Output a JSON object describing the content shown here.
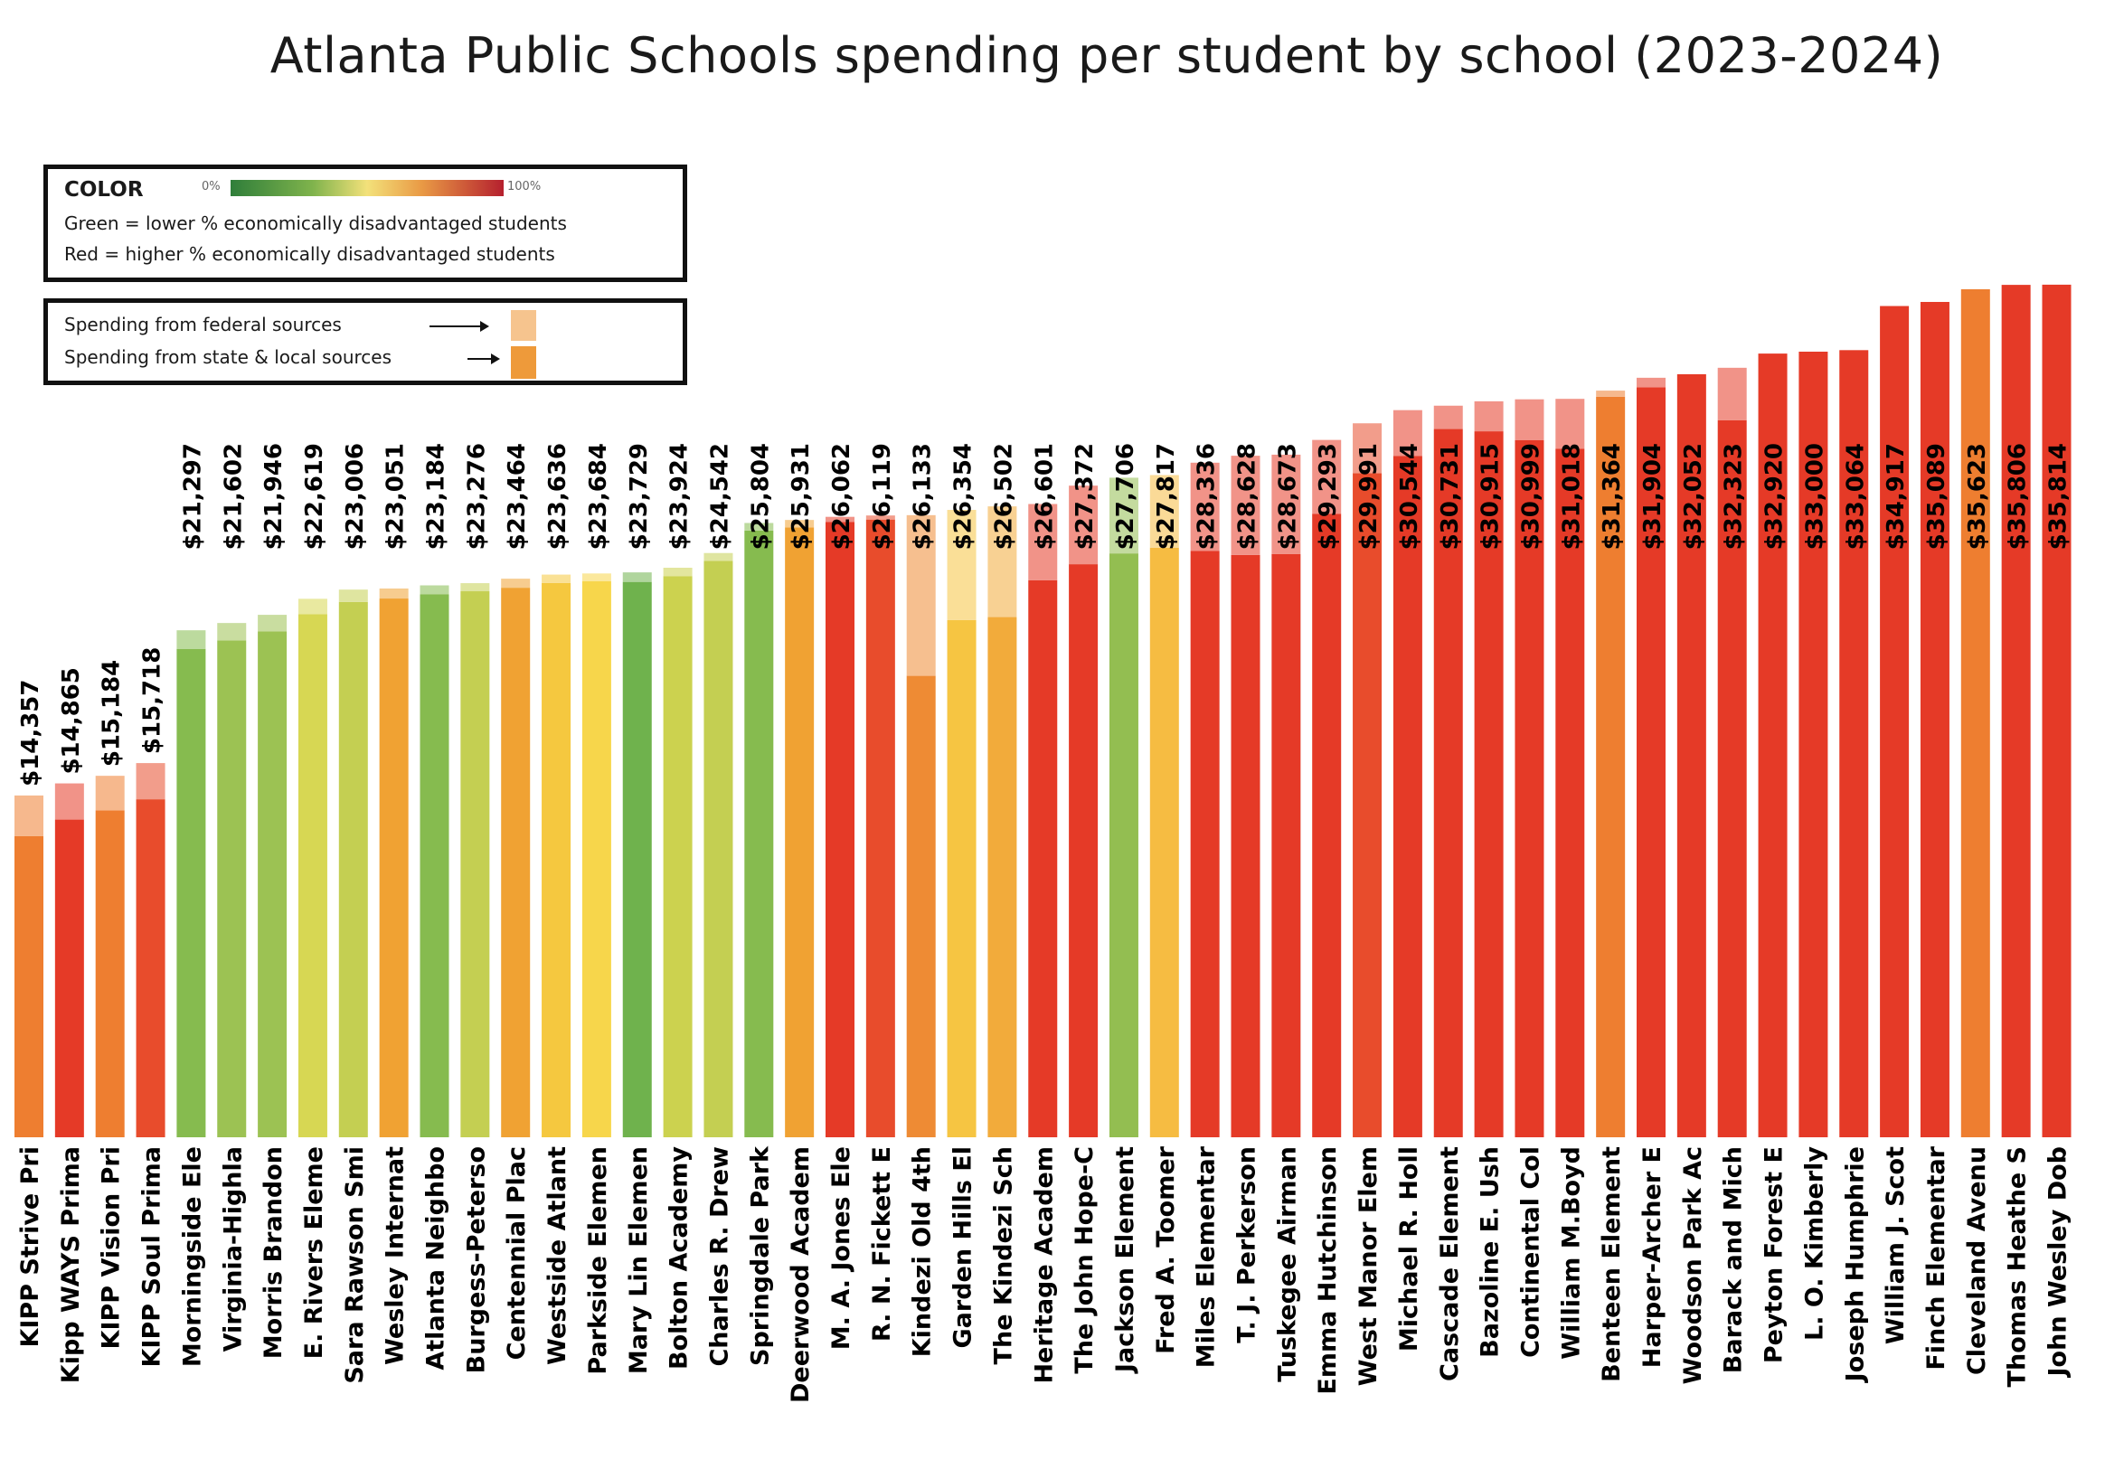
{
  "chart_data": {
    "type": "bar",
    "stacked": true,
    "title": "Atlanta Public Schools spending per student by school (2023-2024)",
    "legend": {
      "color_heading": "COLOR",
      "scale_min_label": "0%",
      "scale_max_label": "100%",
      "green_text": "Green = lower % economically disadvantaged students",
      "red_text": "Red = higher % economically disadvantaged students",
      "federal_text": "Spending from federal sources",
      "state_text": "Spending from state & local sources",
      "federal_color": "#f6c48e",
      "state_color": "#ee9a3a"
    },
    "series": [
      {
        "name": "Spending from state & local sources"
      },
      {
        "name": "Spending from federal sources"
      }
    ],
    "categories": [
      "KIPP Strive Pri",
      "Kipp WAYS Prima",
      "KIPP Vision Pri",
      "KIPP Soul Prima",
      "Morningside Ele",
      "Virginia-Highla",
      "Morris Brandon",
      "E. Rivers Eleme",
      "Sara Rawson Smi",
      "Wesley Internat",
      "Atlanta Neighbo",
      "Burgess-Peterso",
      "Centennial Plac",
      "Westside Atlant",
      "Parkside Elemen",
      "Mary Lin Elemen",
      "Bolton Academy",
      "Charles R. Drew",
      "Springdale Park",
      "Deerwood Academ",
      "M. A. Jones Ele",
      "R. N. Fickett E",
      "Kindezi Old 4th",
      "Garden Hills El",
      "The Kindezi Sch",
      "Heritage Academ",
      "The John Hope-C",
      "Jackson Element",
      "Fred A. Toomer",
      "Miles Elementar",
      "T. J. Perkerson",
      "Tuskegee Airman",
      "Emma Hutchinson",
      "West Manor Elem",
      "Michael R. Holl",
      "Cascade Element",
      "Bazoline E. Ush",
      "Continental Col",
      "William M.Boyd",
      "Benteen Element",
      "Harper-Archer E",
      "Woodson Park Ac",
      "Barack and Mich",
      "Peyton Forest E",
      "L. O. Kimberly",
      "Joseph Humphrie",
      "William J. Scot",
      "Finch Elementar",
      "Cleveland Avenu",
      "Thomas Heathe S",
      "John Wesley Dob"
    ],
    "values": [
      14357,
      14865,
      15184,
      15718,
      21297,
      21602,
      21946,
      22619,
      23006,
      23051,
      23184,
      23276,
      23464,
      23636,
      23684,
      23729,
      23924,
      24542,
      25804,
      25931,
      26062,
      26119,
      26133,
      26354,
      26502,
      26601,
      27372,
      27706,
      27817,
      28336,
      28628,
      28673,
      29293,
      29991,
      30544,
      30731,
      30915,
      30999,
      31018,
      31364,
      31904,
      32052,
      32323,
      32920,
      33000,
      33064,
      34917,
      35089,
      35623,
      35806,
      35814
    ],
    "value_labels": [
      "$14,357",
      "$14,865",
      "$15,184",
      "$15,718",
      "$21,297",
      "$21,602",
      "$21,946",
      "$22,619",
      "$23,006",
      "$23,051",
      "$23,184",
      "$23,276",
      "$23,464",
      "$23,636",
      "$23,684",
      "$23,729",
      "$23,924",
      "$24,542",
      "$25,804",
      "$25,931",
      "$26,062",
      "$26,119",
      "$26,133",
      "$26,354",
      "$26,502",
      "$26,601",
      "$27,372",
      "$27,706",
      "$27,817",
      "$28,336",
      "$28,628",
      "$28,673",
      "$29,293",
      "$29,991",
      "$30,544",
      "$30,731",
      "$30,915",
      "$30,999",
      "$31,018",
      "$31,364",
      "$31,904",
      "$32,052",
      "$32,323",
      "$32,920",
      "$33,000",
      "$33,064",
      "$34,917",
      "$35,089",
      "$35,623",
      "$35,806",
      "$35,814"
    ],
    "federal_values": [
      1710,
      1520,
      1450,
      1520,
      780,
      730,
      700,
      650,
      520,
      420,
      380,
      340,
      380,
      350,
      330,
      400,
      350,
      330,
      320,
      310,
      210,
      170,
      6750,
      4630,
      4650,
      3200,
      3300,
      3180,
      3050,
      3700,
      4170,
      4170,
      3100,
      2100,
      1920,
      980,
      1260,
      1710,
      2100,
      260,
      400,
      0,
      2200,
      0,
      0,
      0,
      0,
      0,
      0,
      0,
      0
    ],
    "disadvantaged_colors": [
      "#ee7e30",
      "#e53a27",
      "#ee7e30",
      "#e84c2c",
      "#86bb4f",
      "#9cc253",
      "#9cc253",
      "#d7d753",
      "#c4cf52",
      "#f0a233",
      "#86bb4f",
      "#c4cf52",
      "#f0a233",
      "#f5c83f",
      "#f7d64b",
      "#6fb24d",
      "#ccd24f",
      "#c4cf52",
      "#86bb4f",
      "#f0a233",
      "#e53a27",
      "#e84c2c",
      "#ee8b34",
      "#f6c542",
      "#f2ab3b",
      "#e53a27",
      "#e53a27",
      "#93be51",
      "#f6bc42",
      "#e53a27",
      "#e53a27",
      "#e53a27",
      "#e53a27",
      "#e84c2c",
      "#e53a27",
      "#e53a27",
      "#e53a27",
      "#e53a27",
      "#e53a27",
      "#ee7e30",
      "#e53a27",
      "#e53a27",
      "#e53a27",
      "#e53a27",
      "#e53a27",
      "#e53a27",
      "#e53a27",
      "#e53a27",
      "#ee7e30",
      "#e53a27",
      "#e53a27"
    ],
    "ylim": [
      0,
      36000
    ],
    "xlabel": "",
    "ylabel": "",
    "grid": false,
    "legend_placement": "top-left"
  }
}
